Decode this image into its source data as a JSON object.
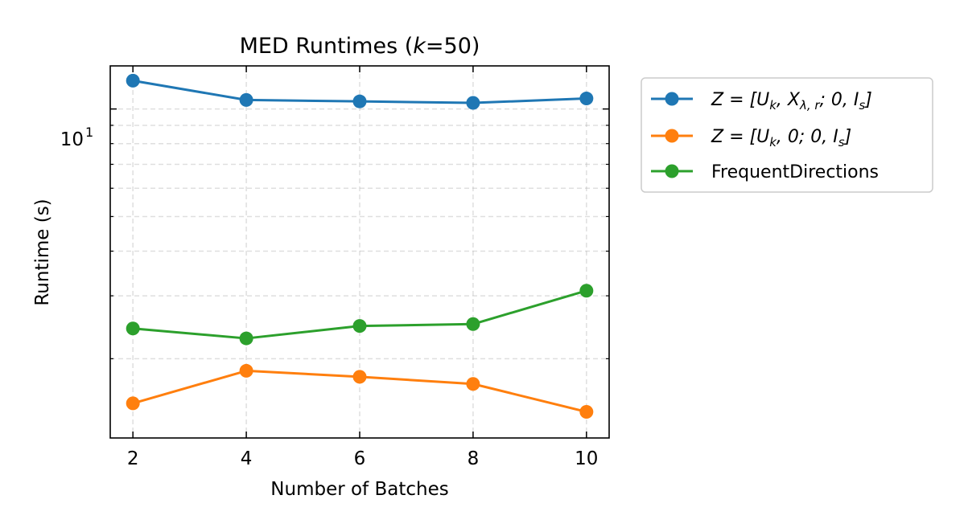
{
  "chart_data": {
    "type": "line",
    "title_prefix": "MED Runtimes (",
    "title_k": "k",
    "title_suffix": "=50)",
    "xlabel": "Number of Batches",
    "ylabel": "Runtime (s)",
    "x": [
      2,
      4,
      6,
      8,
      10
    ],
    "xlim": [
      1.6,
      10.4
    ],
    "ylim": [
      1.2,
      13.2
    ],
    "yscale": "log",
    "x_tick_labels": [
      "2",
      "4",
      "6",
      "8",
      "10"
    ],
    "y_tick_label_base": "10",
    "y_tick_label_exp": "1",
    "grid": true,
    "legend_position": "outside-right",
    "series": [
      {
        "name": "Z = [U_k, X_{λ,r}; 0, I_s]",
        "color": "#1f77b4",
        "values": [
          12.0,
          10.6,
          10.5,
          10.4,
          10.7
        ]
      },
      {
        "name": "Z = [U_k, 0; 0, I_s]",
        "color": "#ff7f0e",
        "values": [
          1.5,
          1.85,
          1.78,
          1.7,
          1.42
        ]
      },
      {
        "name": "FrequentDirections",
        "color": "#2ca02c",
        "values": [
          2.43,
          2.28,
          2.47,
          2.5,
          3.1
        ]
      }
    ]
  }
}
